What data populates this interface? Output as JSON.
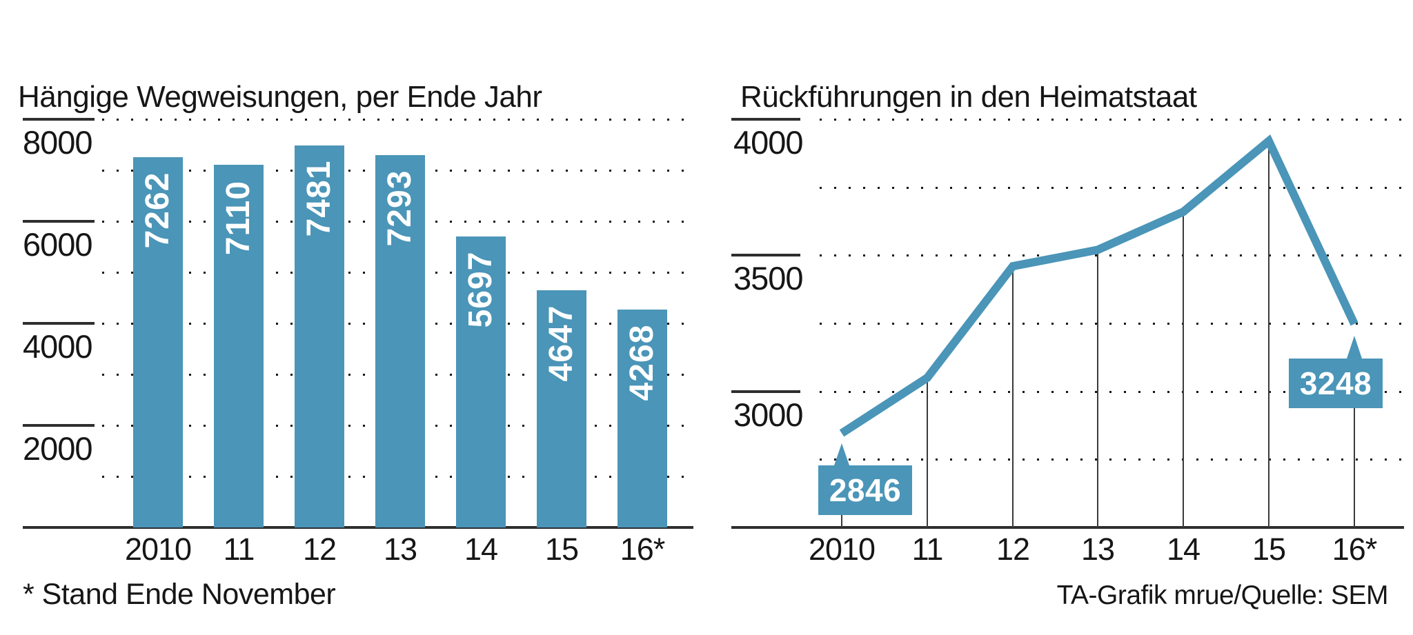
{
  "colors": {
    "accent": "#4a95b8",
    "ink": "#161616",
    "axis": "#2e2e2e",
    "grid_dot": "#151515",
    "point_line": "#3a3a3a",
    "value_text": "#ffffff",
    "background": "#ffffff"
  },
  "chart_data": [
    {
      "type": "bar",
      "title": "Hängige Wegweisungen, per Ende Jahr",
      "footnote": "* Stand Ende November",
      "categories": [
        "2010",
        "11",
        "12",
        "13",
        "14",
        "15",
        "16*"
      ],
      "values": [
        7262,
        7110,
        7481,
        7293,
        5697,
        4647,
        4268
      ],
      "bar_value_labels": [
        "7262",
        "7110",
        "7481",
        "7293",
        "5697",
        "4647",
        "4268"
      ],
      "ylabel": "",
      "xlabel": "",
      "ylim": [
        0,
        8000
      ],
      "y_major_ticks": [
        8000,
        6000,
        4000,
        2000
      ],
      "y_minor_dotted": [
        7000,
        5000,
        3000,
        1000
      ],
      "grid": "dotted horizontal rows",
      "legend": "none"
    },
    {
      "type": "line",
      "title": "Rückführungen in den Heimatstaat",
      "source": "TA-Grafik mrue/Quelle: SEM",
      "categories": [
        "2010",
        "11",
        "12",
        "13",
        "14",
        "15",
        "16*"
      ],
      "values": [
        2846,
        3050,
        3460,
        3520,
        3660,
        3920,
        3248
      ],
      "values_note": "only 2846 and 3248 are printed on the chart; other points estimated from gridlines",
      "labeled_points": [
        {
          "category": "2010",
          "value": 2846
        },
        {
          "category": "16*",
          "value": 3248
        }
      ],
      "ylabel": "",
      "xlabel": "",
      "ylim": [
        2500,
        4000
      ],
      "y_major_ticks": [
        4000,
        3500,
        3000
      ],
      "y_minor_dotted": [
        3750,
        3250,
        2750
      ],
      "grid": "dotted horizontal rows, thin vertical drop lines per point",
      "legend": "none"
    }
  ]
}
